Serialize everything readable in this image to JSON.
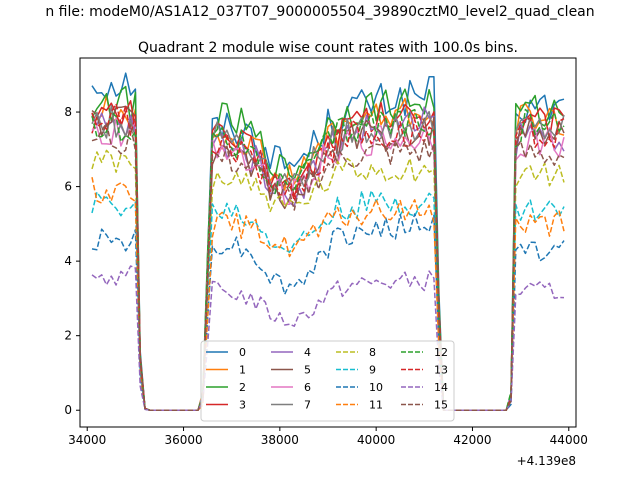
{
  "figure": {
    "suptitle": "n file: modeM0/AS1A12_037T07_9000005504_39890cztM0_level2_quad_clean",
    "offset_label": "+4.139e8"
  },
  "chart_data": {
    "type": "line",
    "title": "Quadrant 2 module wise count rates with 100.0s bins.",
    "xlabel": "",
    "ylabel": "",
    "x_offset": 413900000,
    "xlim": [
      33850,
      44150
    ],
    "ylim": [
      -0.45,
      9.45
    ],
    "xticks": [
      34000,
      36000,
      38000,
      40000,
      42000,
      44000
    ],
    "xtick_labels": [
      "34000",
      "36000",
      "38000",
      "40000",
      "42000",
      "44000"
    ],
    "yticks": [
      0,
      2,
      4,
      6,
      8
    ],
    "ytick_labels": [
      "0",
      "2",
      "4",
      "6",
      "8"
    ],
    "grid": false,
    "legend": {
      "placement": "lower-center",
      "columns": 4
    },
    "segments": [
      {
        "start": 34100,
        "end": 35000,
        "shape": "plateau"
      },
      {
        "start": 35100,
        "end": 35200,
        "shape": "decay"
      },
      {
        "start": 35300,
        "end": 36300,
        "shape": "zero"
      },
      {
        "start": 36400,
        "end": 36600,
        "shape": "rise"
      },
      {
        "start": 36700,
        "end": 41200,
        "shape": "orbit"
      },
      {
        "start": 41300,
        "end": 41300,
        "shape": "drop"
      },
      {
        "start": 41400,
        "end": 42700,
        "shape": "zero"
      },
      {
        "start": 42800,
        "end": 42900,
        "shape": "rise"
      },
      {
        "start": 43000,
        "end": 43900,
        "shape": "plateau"
      }
    ],
    "series": [
      {
        "name": "0",
        "style": "solid",
        "color": "#1f77b4",
        "level_start": 8.8,
        "level_orbit_start": 7.6,
        "level_orbit_dip": 6.6,
        "level_orbit_end": 8.5,
        "level_end": 8.1
      },
      {
        "name": "1",
        "style": "solid",
        "color": "#ff7f0e",
        "level_start": 8.0,
        "level_orbit_start": 7.4,
        "level_orbit_dip": 6.2,
        "level_orbit_end": 8.0,
        "level_end": 7.8
      },
      {
        "name": "2",
        "style": "solid",
        "color": "#2ca02c",
        "level_start": 8.2,
        "level_orbit_start": 7.8,
        "level_orbit_dip": 6.4,
        "level_orbit_end": 8.3,
        "level_end": 8.0
      },
      {
        "name": "3",
        "style": "solid",
        "color": "#d62728",
        "level_start": 7.9,
        "level_orbit_start": 7.3,
        "level_orbit_dip": 6.0,
        "level_orbit_end": 8.0,
        "level_end": 7.7
      },
      {
        "name": "4",
        "style": "solid",
        "color": "#9467bd",
        "level_start": 7.6,
        "level_orbit_start": 7.2,
        "level_orbit_dip": 5.8,
        "level_orbit_end": 7.7,
        "level_end": 7.4
      },
      {
        "name": "5",
        "style": "solid",
        "color": "#8c564b",
        "level_start": 7.8,
        "level_orbit_start": 7.0,
        "level_orbit_dip": 5.6,
        "level_orbit_end": 7.5,
        "level_end": 7.6
      },
      {
        "name": "6",
        "style": "solid",
        "color": "#e377c2",
        "level_start": 7.4,
        "level_orbit_start": 7.1,
        "level_orbit_dip": 5.9,
        "level_orbit_end": 7.3,
        "level_end": 7.2
      },
      {
        "name": "7",
        "style": "solid",
        "color": "#7f7f7f",
        "level_start": 7.7,
        "level_orbit_start": 7.4,
        "level_orbit_dip": 6.1,
        "level_orbit_end": 7.6,
        "level_end": 7.5
      },
      {
        "name": "8",
        "style": "dashed",
        "color": "#bcbd22",
        "level_start": 6.6,
        "level_orbit_start": 6.3,
        "level_orbit_dip": 5.4,
        "level_orbit_end": 6.5,
        "level_end": 6.3
      },
      {
        "name": "9",
        "style": "dashed",
        "color": "#17becf",
        "level_start": 5.5,
        "level_orbit_start": 5.4,
        "level_orbit_dip": 4.4,
        "level_orbit_end": 5.6,
        "level_end": 5.4
      },
      {
        "name": "10",
        "style": "dashed",
        "color": "#1f77b4",
        "level_start": 4.6,
        "level_orbit_start": 4.5,
        "level_orbit_dip": 3.3,
        "level_orbit_end": 5.0,
        "level_end": 4.3
      },
      {
        "name": "11",
        "style": "dashed",
        "color": "#ff7f0e",
        "level_start": 5.9,
        "level_orbit_start": 5.0,
        "level_orbit_dip": 4.4,
        "level_orbit_end": 5.4,
        "level_end": 5.0
      },
      {
        "name": "12",
        "style": "dashed",
        "color": "#2ca02c",
        "level_start": 7.6,
        "level_orbit_start": 7.3,
        "level_orbit_dip": 6.0,
        "level_orbit_end": 7.8,
        "level_end": 7.6
      },
      {
        "name": "13",
        "style": "dashed",
        "color": "#d62728",
        "level_start": 7.8,
        "level_orbit_start": 7.1,
        "level_orbit_dip": 5.8,
        "level_orbit_end": 7.6,
        "level_end": 7.5
      },
      {
        "name": "14",
        "style": "dashed",
        "color": "#9467bd",
        "level_start": 3.6,
        "level_orbit_start": 3.2,
        "level_orbit_dip": 2.4,
        "level_orbit_end": 3.5,
        "level_end": 3.2
      },
      {
        "name": "15",
        "style": "dashed",
        "color": "#8c564b",
        "level_start": 7.3,
        "level_orbit_start": 6.7,
        "level_orbit_dip": 5.7,
        "level_orbit_end": 6.9,
        "level_end": 6.8
      }
    ]
  }
}
